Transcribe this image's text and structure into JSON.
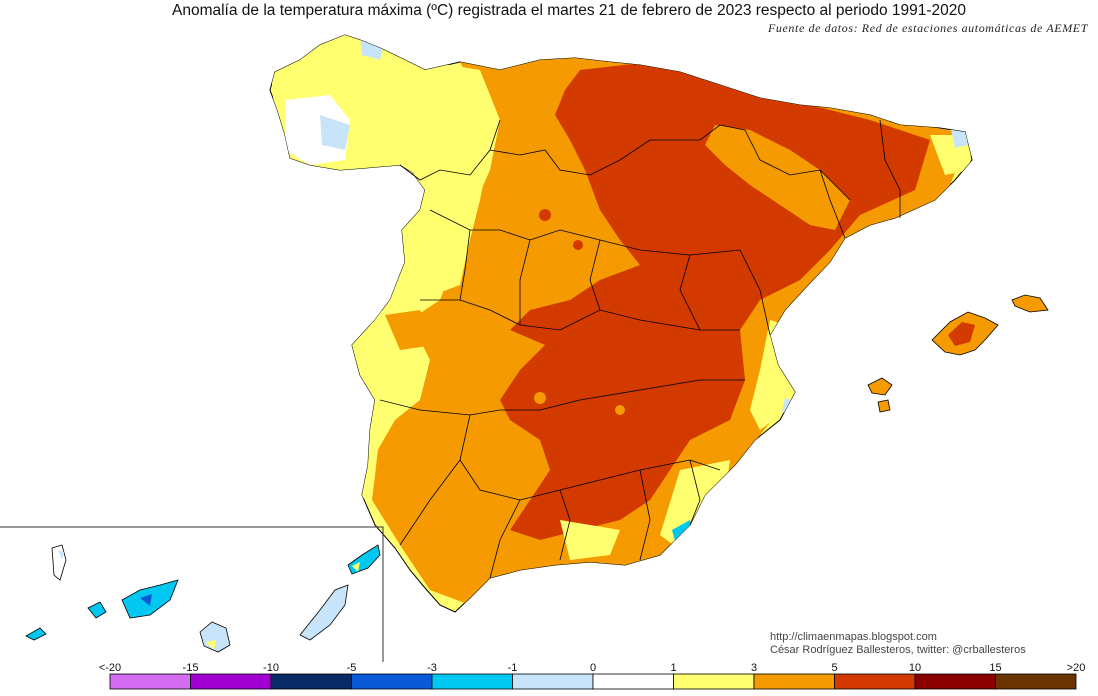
{
  "title": "Anomalía de la temperatura máxima (ºC) registrada el martes 21 de febrero de 2023 respecto al periodo 1991-2020",
  "source": "Fuente de datos: Red de estaciones automáticas de AEMET",
  "credit": {
    "url": "http://climaenmapas.blogspot.com",
    "author": "César Rodríguez Ballesteros, twitter: @crballesteros"
  },
  "legend": {
    "bins": [
      {
        "color": "#d36cf0"
      },
      {
        "color": "#a100d2"
      },
      {
        "color": "#0a2a66"
      },
      {
        "color": "#0a5ad8"
      },
      {
        "color": "#00c8f0"
      },
      {
        "color": "#c8e4fa"
      },
      {
        "color": "#ffffff"
      },
      {
        "color": "#ffff70"
      },
      {
        "color": "#f59a00"
      },
      {
        "color": "#d23a00"
      },
      {
        "color": "#8a0000"
      },
      {
        "color": "#6b3300"
      }
    ],
    "labels": [
      "<-20",
      "-15",
      "-10",
      "-5",
      "-3",
      "-1",
      "0",
      "1",
      "3",
      "5",
      "10",
      "15",
      ">20"
    ]
  },
  "colors": {
    "anomaly_0_1": "#ffffff",
    "anomaly_1_3": "#ffff70",
    "anomaly_3_5": "#f59a00",
    "anomaly_5_10": "#d23a00",
    "anomaly_m1_0": "#c8e4fa",
    "anomaly_m3_m1": "#00c8f0"
  }
}
